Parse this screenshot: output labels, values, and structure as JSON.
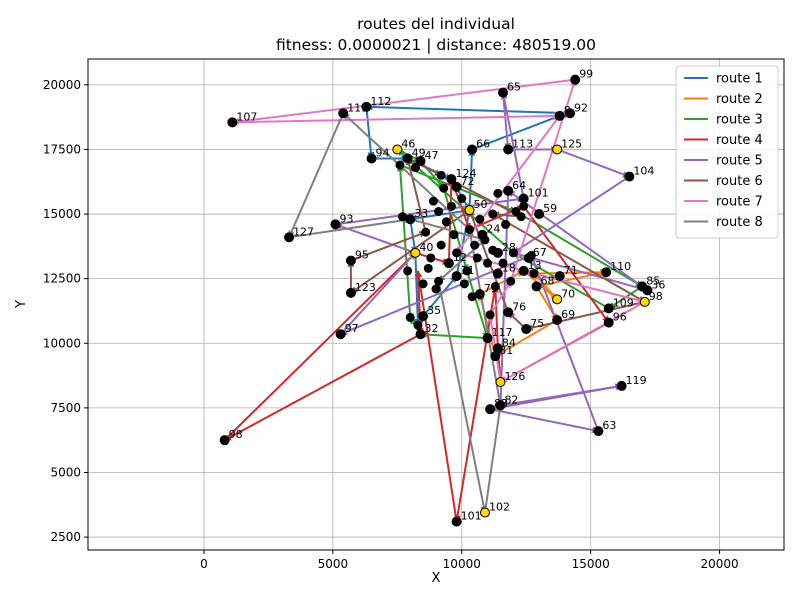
{
  "chart_data": {
    "type": "line",
    "title": "routes del individual",
    "subtitle": "fitness: 0.0000021 | distance: 480519.00",
    "xlabel": "X",
    "ylabel": "Y",
    "xlim": [
      -4500,
      22500
    ],
    "ylim": [
      2000,
      21000
    ],
    "xticks": [
      0,
      5000,
      10000,
      15000,
      20000
    ],
    "yticks": [
      2500,
      5000,
      7500,
      10000,
      12500,
      15000,
      17500,
      20000
    ],
    "grid": true,
    "legend_position": "upper right",
    "colors": {
      "route 1": "#1f77b4",
      "route 2": "#ff7f0e",
      "route 3": "#2ca02c",
      "route 4": "#d62728",
      "route 5": "#9467bd",
      "route 6": "#8c564b",
      "route 7": "#e377c2",
      "route 8": "#7f7f7f",
      "node": "#000000",
      "depot": "#ffd700"
    },
    "legend": [
      "route 1",
      "route 2",
      "route 3",
      "route 4",
      "route 5",
      "route 6",
      "route 7",
      "route 8"
    ],
    "nodes": [
      {
        "id": "99",
        "x": 14400,
        "y": 20200
      },
      {
        "id": "65",
        "x": 11600,
        "y": 19700
      },
      {
        "id": "112",
        "x": 6300,
        "y": 19150
      },
      {
        "id": "111",
        "x": 5400,
        "y": 18900
      },
      {
        "id": "92",
        "x": 14200,
        "y": 18900
      },
      {
        "id": "8",
        "x": 13800,
        "y": 18800
      },
      {
        "id": "107",
        "x": 1100,
        "y": 18550
      },
      {
        "id": "125",
        "x": 13700,
        "y": 17500,
        "depot": true
      },
      {
        "id": "46",
        "x": 7500,
        "y": 17500,
        "depot": true
      },
      {
        "id": "66",
        "x": 10400,
        "y": 17500
      },
      {
        "id": "113",
        "x": 11800,
        "y": 17500
      },
      {
        "id": "94",
        "x": 6500,
        "y": 17150
      },
      {
        "id": "49",
        "x": 7900,
        "y": 17150
      },
      {
        "id": "47",
        "x": 8400,
        "y": 17050
      },
      {
        "id": "104",
        "x": 16500,
        "y": 16450
      },
      {
        "id": "124",
        "x": 9600,
        "y": 16350
      },
      {
        "id": "64",
        "x": 11800,
        "y": 15900
      },
      {
        "id": "101",
        "x": 12400,
        "y": 15600
      },
      {
        "id": "59",
        "x": 13000,
        "y": 15000
      },
      {
        "id": "50",
        "x": 10300,
        "y": 15150,
        "depot": true
      },
      {
        "id": "93",
        "x": 5100,
        "y": 14600
      },
      {
        "id": "127",
        "x": 3300,
        "y": 14100
      },
      {
        "id": "40",
        "x": 8200,
        "y": 13500,
        "depot": true
      },
      {
        "id": "67",
        "x": 12600,
        "y": 13300
      },
      {
        "id": "95",
        "x": 5700,
        "y": 13200
      },
      {
        "id": "110",
        "x": 15600,
        "y": 12750
      },
      {
        "id": "71",
        "x": 13800,
        "y": 12600
      },
      {
        "id": "85",
        "x": 17000,
        "y": 12200
      },
      {
        "id": "36",
        "x": 17200,
        "y": 12050
      },
      {
        "id": "123",
        "x": 5700,
        "y": 11950
      },
      {
        "id": "68",
        "x": 12900,
        "y": 12200
      },
      {
        "id": "98",
        "x": 17100,
        "y": 11600,
        "depot": true
      },
      {
        "id": "70",
        "x": 13700,
        "y": 11700,
        "depot": true
      },
      {
        "id": "109",
        "x": 15700,
        "y": 11350
      },
      {
        "id": "69",
        "x": 13700,
        "y": 10900
      },
      {
        "id": "96",
        "x": 15700,
        "y": 10800
      },
      {
        "id": "75",
        "x": 12500,
        "y": 10550
      },
      {
        "id": "76",
        "x": 11800,
        "y": 11200
      },
      {
        "id": "97",
        "x": 5300,
        "y": 10350
      },
      {
        "id": "32",
        "x": 8400,
        "y": 10350
      },
      {
        "id": "117",
        "x": 11000,
        "y": 10200
      },
      {
        "id": "84",
        "x": 11400,
        "y": 9800
      },
      {
        "id": "81",
        "x": 11300,
        "y": 9500
      },
      {
        "id": "126",
        "x": 11500,
        "y": 8500,
        "depot": true
      },
      {
        "id": "119",
        "x": 16200,
        "y": 8350
      },
      {
        "id": "82",
        "x": 11500,
        "y": 7600
      },
      {
        "id": "83",
        "x": 11100,
        "y": 7450
      },
      {
        "id": "63",
        "x": 15300,
        "y": 6600
      },
      {
        "id": "98b",
        "x": 800,
        "y": 6250
      },
      {
        "id": "102",
        "x": 10900,
        "y": 3450,
        "depot": true
      },
      {
        "id": "101b",
        "x": 9800,
        "y": 3100
      },
      {
        "id": "35",
        "x": 8500,
        "y": 11050
      },
      {
        "id": "79",
        "x": 10700,
        "y": 11900
      },
      {
        "id": "31",
        "x": 9800,
        "y": 12600
      },
      {
        "id": "18",
        "x": 11400,
        "y": 12700
      },
      {
        "id": "13",
        "x": 12400,
        "y": 12800
      },
      {
        "id": "28",
        "x": 11400,
        "y": 13500
      },
      {
        "id": "24",
        "x": 10800,
        "y": 14200
      },
      {
        "id": "12",
        "x": 9500,
        "y": 13100
      },
      {
        "id": "33",
        "x": 8000,
        "y": 14800
      },
      {
        "id": "72",
        "x": 9800,
        "y": 16050
      }
    ],
    "unlabeled_nodes": [
      [
        10900,
        14000
      ],
      [
        11200,
        13600
      ],
      [
        10600,
        13300
      ],
      [
        9200,
        13800
      ],
      [
        8700,
        12900
      ],
      [
        9100,
        12400
      ],
      [
        10300,
        14400
      ],
      [
        9600,
        15300
      ],
      [
        8900,
        15500
      ],
      [
        10000,
        15600
      ],
      [
        11400,
        15800
      ],
      [
        12100,
        15100
      ],
      [
        12400,
        15300
      ],
      [
        11700,
        14600
      ],
      [
        12000,
        13500
      ],
      [
        11000,
        13100
      ],
      [
        10200,
        12800
      ],
      [
        8500,
        12300
      ],
      [
        9000,
        12100
      ],
      [
        10400,
        11800
      ],
      [
        11100,
        11100
      ],
      [
        12800,
        12700
      ],
      [
        9400,
        14700
      ],
      [
        8600,
        14300
      ],
      [
        7700,
        14900
      ],
      [
        7900,
        12800
      ],
      [
        8800,
        13300
      ],
      [
        10700,
        14800
      ],
      [
        11900,
        12400
      ],
      [
        9100,
        15100
      ],
      [
        8300,
        10700
      ],
      [
        8000,
        11000
      ],
      [
        9300,
        16000
      ],
      [
        9700,
        14200
      ],
      [
        12300,
        14900
      ],
      [
        11200,
        15000
      ],
      [
        10500,
        13800
      ],
      [
        9800,
        13500
      ],
      [
        11600,
        13100
      ],
      [
        8200,
        16800
      ],
      [
        7600,
        16900
      ],
      [
        9200,
        16500
      ],
      [
        12700,
        13400
      ],
      [
        10100,
        12300
      ],
      [
        11300,
        12200
      ]
    ],
    "routes": [
      {
        "name": "route 1",
        "points": [
          [
            10300,
            15150
          ],
          [
            10400,
            17500
          ],
          [
            13800,
            18800
          ],
          [
            14200,
            18900
          ],
          [
            6300,
            19150
          ],
          [
            6500,
            17150
          ],
          [
            7900,
            17150
          ],
          [
            9600,
            16350
          ],
          [
            10300,
            15150
          ],
          [
            8000,
            14800
          ],
          [
            8200,
            13500
          ],
          [
            8300,
            10700
          ],
          [
            8500,
            11050
          ],
          [
            9800,
            12600
          ],
          [
            10300,
            15150
          ]
        ]
      },
      {
        "name": "route 2",
        "points": [
          [
            13700,
            11700
          ],
          [
            12800,
            12700
          ],
          [
            15600,
            12750
          ],
          [
            12900,
            12200
          ],
          [
            13700,
            10900
          ],
          [
            11300,
            9500
          ],
          [
            10700,
            11900
          ],
          [
            12400,
            12800
          ],
          [
            13700,
            11700
          ]
        ]
      },
      {
        "name": "route 3",
        "points": [
          [
            7500,
            17500
          ],
          [
            8400,
            17050
          ],
          [
            9300,
            16000
          ],
          [
            10200,
            12800
          ],
          [
            11000,
            10200
          ],
          [
            8400,
            10350
          ],
          [
            8000,
            11000
          ],
          [
            7600,
            16900
          ],
          [
            12100,
            15100
          ],
          [
            17000,
            12200
          ],
          [
            15700,
            11350
          ],
          [
            12000,
            13500
          ],
          [
            7500,
            17500
          ]
        ]
      },
      {
        "name": "route 4",
        "points": [
          [
            11500,
            8500
          ],
          [
            11400,
            9800
          ],
          [
            11300,
            12200
          ],
          [
            9800,
            3100
          ],
          [
            8300,
            12800
          ],
          [
            8400,
            10350
          ],
          [
            800,
            6250
          ],
          [
            8200,
            13500
          ],
          [
            9500,
            13100
          ],
          [
            9600,
            16350
          ],
          [
            10300,
            14400
          ],
          [
            12400,
            15300
          ],
          [
            15700,
            10800
          ],
          [
            11500,
            8500
          ]
        ]
      },
      {
        "name": "route 5",
        "points": [
          [
            8200,
            13500
          ],
          [
            5100,
            14600
          ],
          [
            12400,
            15600
          ],
          [
            11600,
            19700
          ],
          [
            11800,
            17500
          ],
          [
            13700,
            17500
          ],
          [
            16500,
            16450
          ],
          [
            12000,
            13500
          ],
          [
            17200,
            12050
          ],
          [
            11800,
            15900
          ],
          [
            11500,
            7600
          ],
          [
            16200,
            8350
          ],
          [
            11100,
            7450
          ],
          [
            15300,
            6600
          ],
          [
            12700,
            13400
          ],
          [
            5300,
            10350
          ],
          [
            8200,
            13500
          ]
        ]
      },
      {
        "name": "route 6",
        "points": [
          [
            10300,
            15150
          ],
          [
            5700,
            11950
          ],
          [
            5700,
            13200
          ],
          [
            8600,
            14300
          ],
          [
            7900,
            17150
          ],
          [
            9200,
            16500
          ],
          [
            12300,
            14900
          ],
          [
            11200,
            15000
          ],
          [
            17100,
            11600
          ],
          [
            12500,
            10550
          ],
          [
            11800,
            11200
          ],
          [
            10300,
            15150
          ]
        ]
      },
      {
        "name": "route 7",
        "points": [
          [
            11500,
            8500
          ],
          [
            11100,
            11100
          ],
          [
            11900,
            12400
          ],
          [
            14400,
            20200
          ],
          [
            1100,
            18550
          ],
          [
            13800,
            18800
          ],
          [
            9800,
            13500
          ],
          [
            12800,
            12700
          ],
          [
            17100,
            11600
          ],
          [
            11500,
            8500
          ]
        ]
      },
      {
        "name": "route 8",
        "points": [
          [
            10900,
            3450
          ],
          [
            11500,
            7600
          ],
          [
            10300,
            14400
          ],
          [
            5400,
            18900
          ],
          [
            3300,
            14100
          ],
          [
            8000,
            14800
          ],
          [
            10900,
            14000
          ],
          [
            9100,
            12400
          ],
          [
            10900,
            3450
          ]
        ]
      }
    ]
  }
}
